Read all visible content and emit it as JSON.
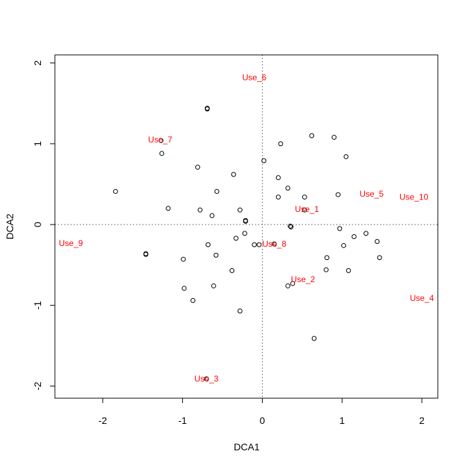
{
  "chart_data": {
    "type": "scatter",
    "title": "",
    "xlabel": "DCA1",
    "ylabel": "DCA2",
    "xlim": [
      -2.6,
      2.2
    ],
    "ylim": [
      -2.15,
      2.1
    ],
    "xticks": [
      -2,
      -1,
      0,
      1,
      2
    ],
    "yticks": [
      -2,
      -1,
      0,
      1,
      2
    ],
    "xtick_labels": [
      "-2",
      "-1",
      "0",
      "1",
      "2"
    ],
    "ytick_labels": [
      "-2",
      "-1",
      "0",
      "1",
      "2"
    ],
    "grid": false,
    "reference_lines": {
      "x": 0,
      "y": 0,
      "style": "dotted"
    },
    "site_points": [
      {
        "x": -0.69,
        "y": 1.43
      },
      {
        "x": -0.69,
        "y": 1.44
      },
      {
        "x": 0.62,
        "y": 1.1
      },
      {
        "x": 0.9,
        "y": 1.08
      },
      {
        "x": 0.23,
        "y": 1.0
      },
      {
        "x": -1.27,
        "y": 1.04
      },
      {
        "x": -1.26,
        "y": 0.88
      },
      {
        "x": 1.05,
        "y": 0.84
      },
      {
        "x": 0.02,
        "y": 0.79
      },
      {
        "x": -0.81,
        "y": 0.71
      },
      {
        "x": -0.36,
        "y": 0.62
      },
      {
        "x": 0.2,
        "y": 0.58
      },
      {
        "x": 0.32,
        "y": 0.45
      },
      {
        "x": -0.57,
        "y": 0.41
      },
      {
        "x": -1.84,
        "y": 0.41
      },
      {
        "x": 0.95,
        "y": 0.37
      },
      {
        "x": 0.2,
        "y": 0.34
      },
      {
        "x": 0.53,
        "y": 0.34
      },
      {
        "x": -1.18,
        "y": 0.2
      },
      {
        "x": -0.78,
        "y": 0.18
      },
      {
        "x": -0.28,
        "y": 0.18
      },
      {
        "x": 0.53,
        "y": 0.18
      },
      {
        "x": -0.63,
        "y": 0.11
      },
      {
        "x": -0.21,
        "y": 0.05
      },
      {
        "x": -0.21,
        "y": 0.04
      },
      {
        "x": 0.35,
        "y": -0.02
      },
      {
        "x": 0.36,
        "y": -0.03
      },
      {
        "x": 0.97,
        "y": -0.05
      },
      {
        "x": -0.22,
        "y": -0.11
      },
      {
        "x": 1.3,
        "y": -0.11
      },
      {
        "x": -0.33,
        "y": -0.17
      },
      {
        "x": 1.15,
        "y": -0.15
      },
      {
        "x": 1.44,
        "y": -0.21
      },
      {
        "x": -0.1,
        "y": -0.25
      },
      {
        "x": -0.04,
        "y": -0.25
      },
      {
        "x": 0.15,
        "y": -0.24
      },
      {
        "x": -0.68,
        "y": -0.25
      },
      {
        "x": 1.02,
        "y": -0.26
      },
      {
        "x": -1.46,
        "y": -0.36
      },
      {
        "x": -1.46,
        "y": -0.37
      },
      {
        "x": -0.58,
        "y": -0.38
      },
      {
        "x": 1.47,
        "y": -0.41
      },
      {
        "x": 0.81,
        "y": -0.41
      },
      {
        "x": -0.99,
        "y": -0.43
      },
      {
        "x": -0.38,
        "y": -0.57
      },
      {
        "x": 0.8,
        "y": -0.56
      },
      {
        "x": 1.08,
        "y": -0.57
      },
      {
        "x": 0.38,
        "y": -0.73
      },
      {
        "x": 0.32,
        "y": -0.76
      },
      {
        "x": -0.61,
        "y": -0.76
      },
      {
        "x": -0.98,
        "y": -0.79
      },
      {
        "x": -0.87,
        "y": -0.94
      },
      {
        "x": -0.28,
        "y": -1.07
      },
      {
        "x": 0.65,
        "y": -1.41
      },
      {
        "x": -0.7,
        "y": -1.91
      }
    ],
    "species": [
      {
        "label": "Use_1",
        "x": 0.56,
        "y": 0.19
      },
      {
        "label": "Use_2",
        "x": 0.51,
        "y": -0.68
      },
      {
        "label": "Use_3",
        "x": -0.7,
        "y": -1.91
      },
      {
        "label": "Use_4",
        "x": 2.0,
        "y": -0.91
      },
      {
        "label": "Use_5",
        "x": 1.37,
        "y": 0.38
      },
      {
        "label": "Use_6",
        "x": -0.1,
        "y": 1.82
      },
      {
        "label": "Use_7",
        "x": -1.28,
        "y": 1.05
      },
      {
        "label": "Use_8",
        "x": 0.15,
        "y": -0.24
      },
      {
        "label": "Use_9",
        "x": -2.4,
        "y": -0.23
      },
      {
        "label": "Use_10",
        "x": 1.9,
        "y": 0.34
      }
    ],
    "colors": {
      "points": "#000000",
      "species_labels": "#ff0000",
      "reference_lines": "#555555"
    }
  }
}
